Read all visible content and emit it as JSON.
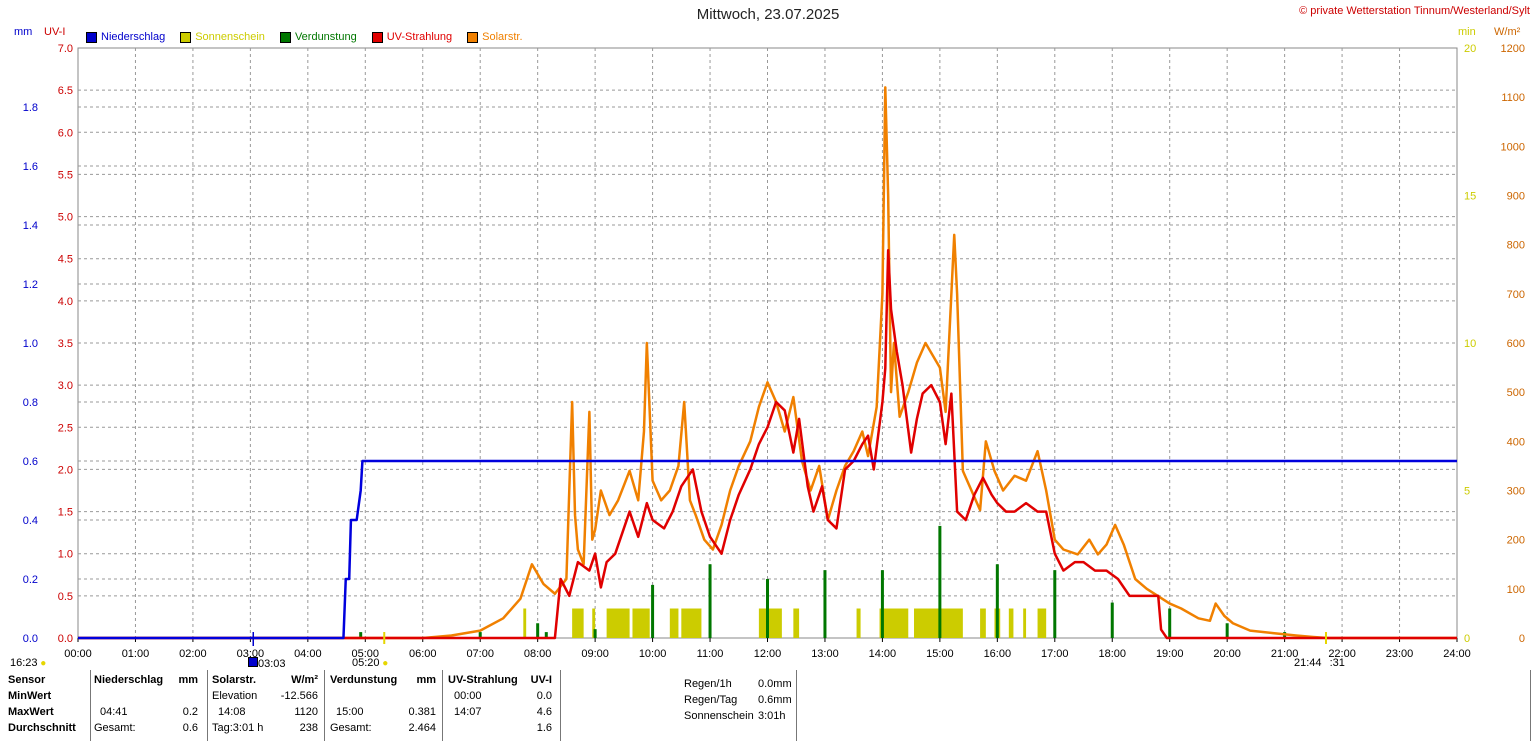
{
  "title": "Mittwoch, 23.07.2025",
  "copyright": "© private Wetterstation Tinnum/Westerland/Sylt",
  "axis_units": {
    "left_mm": "mm",
    "left_uv": "UV-I",
    "right_min": "min",
    "right_wm2": "W/m²"
  },
  "legend": [
    {
      "label": "Niederschlag",
      "color": "#0000cc",
      "text_color": "#0000cc"
    },
    {
      "label": "Sonnenschein",
      "color": "#cccc00",
      "text_color": "#cccc00"
    },
    {
      "label": "Verdunstung",
      "color": "#007700",
      "text_color": "#007700"
    },
    {
      "label": "UV-Strahlung",
      "color": "#e00000",
      "text_color": "#e00000"
    },
    {
      "label": "Solarstr.",
      "color": "#f08000",
      "text_color": "#f08000"
    }
  ],
  "markers": {
    "sunrise_prev": "16:23",
    "moon": "03:03",
    "sunrise": "05:20",
    "sunset": "21:44",
    "sunset_suffix": ":31"
  },
  "chart_data": {
    "type": "line",
    "x_unit": "hour",
    "x_ticks": [
      "00:00",
      "01:00",
      "02:00",
      "03:00",
      "04:00",
      "05:00",
      "06:00",
      "07:00",
      "08:00",
      "09:00",
      "10:00",
      "11:00",
      "12:00",
      "13:00",
      "14:00",
      "15:00",
      "16:00",
      "17:00",
      "18:00",
      "19:00",
      "20:00",
      "21:00",
      "22:00",
      "23:00",
      "24:00"
    ],
    "xlim": [
      0,
      24
    ],
    "axes": {
      "mm": {
        "ticks": [
          "0.0",
          "0.2",
          "0.4",
          "0.6",
          "0.8",
          "1.0",
          "1.2",
          "1.4",
          "1.6",
          "1.8"
        ],
        "ylim": [
          0,
          2.0
        ],
        "color": "#0000cc"
      },
      "uv": {
        "ticks": [
          "0.0",
          "0.5",
          "1.0",
          "1.5",
          "2.0",
          "2.5",
          "3.0",
          "3.5",
          "4.0",
          "4.5",
          "5.0",
          "5.5",
          "6.0",
          "6.5",
          "7.0"
        ],
        "ylim": [
          0,
          7.0
        ],
        "color": "#cc0000"
      },
      "min": {
        "ticks": [
          "0",
          "5",
          "10",
          "15",
          "20"
        ],
        "ylim": [
          0,
          20
        ],
        "color": "#cccc00"
      },
      "wm2": {
        "ticks": [
          "0",
          "100",
          "200",
          "300",
          "400",
          "500",
          "600",
          "700",
          "800",
          "900",
          "1000",
          "1100",
          "1200"
        ],
        "ylim": [
          0,
          1200
        ],
        "color": "#cc6600"
      }
    },
    "grid": true,
    "series": [
      {
        "name": "Niederschlag",
        "axis": "mm",
        "color": "#0000dd",
        "x": [
          0,
          4.62,
          4.66,
          4.72,
          4.75,
          4.85,
          4.92,
          4.95,
          24
        ],
        "y": [
          0,
          0,
          0.2,
          0.2,
          0.4,
          0.4,
          0.5,
          0.6,
          0.6
        ]
      },
      {
        "name": "UV-Strahlung",
        "axis": "uv",
        "color": "#e00000",
        "x": [
          0,
          8.3,
          8.4,
          8.55,
          8.7,
          8.9,
          9.0,
          9.1,
          9.2,
          9.35,
          9.5,
          9.6,
          9.75,
          9.9,
          10.0,
          10.2,
          10.35,
          10.5,
          10.6,
          10.7,
          10.85,
          11.0,
          11.1,
          11.2,
          11.35,
          11.5,
          11.7,
          11.85,
          12.0,
          12.15,
          12.3,
          12.45,
          12.55,
          12.7,
          12.8,
          12.95,
          13.05,
          13.2,
          13.35,
          13.5,
          13.65,
          13.75,
          13.85,
          14.0,
          14.05,
          14.1,
          14.15,
          14.25,
          14.35,
          14.5,
          14.6,
          14.7,
          14.85,
          15.0,
          15.1,
          15.2,
          15.3,
          15.45,
          15.6,
          15.75,
          15.9,
          16.0,
          16.15,
          16.3,
          16.5,
          16.7,
          16.85,
          17.0,
          17.15,
          17.35,
          17.5,
          17.7,
          17.9,
          18.1,
          18.3,
          18.6,
          18.8,
          18.85,
          18.95,
          24
        ],
        "y": [
          0,
          0,
          0.7,
          0.5,
          0.9,
          0.8,
          1.0,
          0.6,
          0.9,
          1.0,
          1.3,
          1.5,
          1.2,
          1.6,
          1.4,
          1.3,
          1.5,
          1.8,
          1.9,
          2.0,
          1.5,
          1.2,
          1.1,
          1.0,
          1.4,
          1.7,
          2.0,
          2.3,
          2.5,
          2.8,
          2.7,
          2.2,
          2.6,
          1.8,
          1.5,
          1.8,
          1.4,
          1.3,
          2.0,
          2.1,
          2.3,
          2.4,
          2.0,
          2.8,
          3.2,
          4.6,
          3.9,
          3.4,
          3.0,
          2.2,
          2.6,
          2.9,
          3.0,
          2.8,
          2.3,
          2.9,
          1.5,
          1.4,
          1.7,
          1.9,
          1.7,
          1.6,
          1.5,
          1.5,
          1.6,
          1.5,
          1.5,
          1.0,
          0.8,
          0.9,
          0.9,
          0.8,
          0.8,
          0.7,
          0.5,
          0.5,
          0.5,
          0.1,
          0,
          0
        ]
      },
      {
        "name": "Solarstr.",
        "axis": "wm2",
        "color": "#f08000",
        "x": [
          0,
          6.0,
          6.5,
          7.0,
          7.4,
          7.7,
          7.9,
          8.1,
          8.3,
          8.5,
          8.6,
          8.65,
          8.7,
          8.8,
          8.9,
          8.95,
          9.0,
          9.1,
          9.25,
          9.4,
          9.6,
          9.75,
          9.85,
          9.9,
          10.0,
          10.15,
          10.3,
          10.45,
          10.55,
          10.65,
          10.75,
          10.9,
          11.05,
          11.2,
          11.35,
          11.5,
          11.7,
          11.85,
          12.0,
          12.15,
          12.3,
          12.45,
          12.6,
          12.75,
          12.9,
          13.05,
          13.2,
          13.35,
          13.5,
          13.65,
          13.75,
          13.9,
          14.0,
          14.05,
          14.1,
          14.15,
          14.2,
          14.3,
          14.45,
          14.6,
          14.75,
          14.85,
          15.0,
          15.1,
          15.25,
          15.3,
          15.4,
          15.55,
          15.7,
          15.8,
          15.95,
          16.1,
          16.3,
          16.5,
          16.7,
          16.85,
          17.0,
          17.15,
          17.4,
          17.6,
          17.75,
          17.9,
          18.05,
          18.2,
          18.4,
          18.6,
          18.8,
          19.0,
          19.2,
          19.5,
          19.7,
          19.8,
          19.95,
          20.1,
          20.4,
          20.8,
          21.2,
          21.5,
          21.75,
          24
        ],
        "y": [
          0,
          0,
          5,
          15,
          40,
          80,
          150,
          110,
          90,
          120,
          480,
          250,
          180,
          150,
          460,
          200,
          220,
          300,
          250,
          280,
          340,
          280,
          420,
          600,
          320,
          280,
          300,
          350,
          480,
          280,
          250,
          200,
          180,
          230,
          300,
          350,
          400,
          470,
          520,
          480,
          420,
          490,
          360,
          300,
          350,
          240,
          300,
          350,
          380,
          420,
          370,
          470,
          700,
          1120,
          900,
          500,
          600,
          450,
          500,
          560,
          600,
          580,
          550,
          460,
          820,
          700,
          340,
          300,
          260,
          400,
          340,
          300,
          330,
          320,
          380,
          300,
          200,
          180,
          170,
          200,
          170,
          190,
          230,
          190,
          120,
          100,
          85,
          70,
          60,
          40,
          35,
          70,
          45,
          30,
          15,
          10,
          5,
          2,
          0,
          0
        ]
      }
    ],
    "bars": [
      {
        "name": "Verdunstung",
        "axis": "mm",
        "color": "#007700",
        "x": [
          4.92,
          7.0,
          8.0,
          8.15,
          9.0,
          10.0,
          11.0,
          12.0,
          13.0,
          14.0,
          15.0,
          16.0,
          17.0,
          18.0,
          19.0,
          20.0,
          21.0
        ],
        "y": [
          0.02,
          0.02,
          0.05,
          0.02,
          0.03,
          0.18,
          0.25,
          0.2,
          0.23,
          0.23,
          0.38,
          0.25,
          0.23,
          0.12,
          0.1,
          0.05,
          0.02
        ]
      },
      {
        "name": "Sonnenschein",
        "axis": "min",
        "color": "#cccc00",
        "ranges": [
          [
            7.75,
            7.8
          ],
          [
            8.6,
            8.8
          ],
          [
            8.95,
            9.0
          ],
          [
            9.2,
            9.6
          ],
          [
            9.65,
            9.95
          ],
          [
            10.3,
            10.45
          ],
          [
            10.5,
            10.85
          ],
          [
            11.85,
            12.25
          ],
          [
            12.45,
            12.55
          ],
          [
            13.55,
            13.62
          ],
          [
            13.95,
            14.45
          ],
          [
            14.55,
            15.4
          ],
          [
            15.7,
            15.8
          ],
          [
            15.95,
            16.05
          ],
          [
            16.2,
            16.28
          ],
          [
            16.45,
            16.5
          ],
          [
            16.7,
            16.85
          ]
        ],
        "y": 1
      }
    ]
  },
  "stats": {
    "headers": {
      "sensor": "Sensor",
      "niederschlag": "Niederschlag",
      "mm1": "mm",
      "solar": "Solarstr.",
      "wm2": "W/m²",
      "verdunstung": "Verdunstung",
      "mm2": "mm",
      "uv": "UV-Strahlung",
      "uvi": "UV-I"
    },
    "labels": {
      "min": "MinWert",
      "max": "MaxWert",
      "avg": "Durchschnitt"
    },
    "niederschlag": {
      "max_time": "04:41",
      "max_val": "0.2",
      "avg_label": "Gesamt:",
      "avg_val": "0.6"
    },
    "solar": {
      "elev_label": "Elevation",
      "elev_val": "-12.566",
      "max_time": "14:08",
      "max_val": "1120",
      "avg_label": "Tag:3:01 h",
      "avg_val": "238"
    },
    "verdunstung": {
      "max_time": "15:00",
      "max_val": "0.381",
      "avg_label": "Gesamt:",
      "avg_val": "2.464"
    },
    "uv": {
      "min_time": "00:00",
      "min_val": "0.0",
      "max_time": "14:07",
      "max_val": "4.6",
      "avg_val": "1.6"
    },
    "summary": [
      {
        "label": "Regen/1h",
        "value": "0.0mm"
      },
      {
        "label": "Regen/Tag",
        "value": "0.6mm"
      },
      {
        "label": "Sonnenschein",
        "value": "3:01h"
      }
    ]
  }
}
